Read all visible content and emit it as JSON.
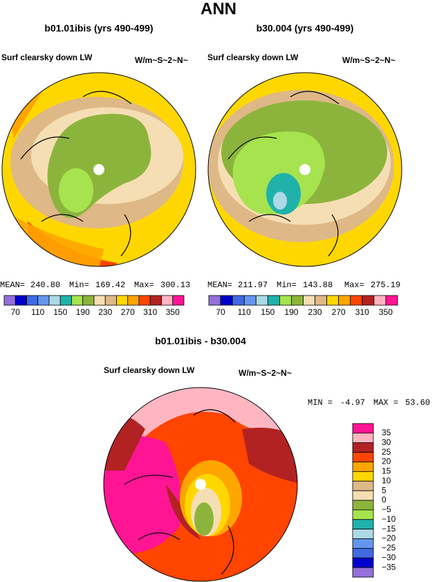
{
  "title": "ANN",
  "panels": [
    {
      "title": "b01.01ibis (yrs 490-499)",
      "variable": "Surf clearsky down LW",
      "units": "W/m~S~2~N~",
      "stats": {
        "mean_label": "MEAN=",
        "mean": "240.80",
        "min_label": "Min=",
        "min": "169.42",
        "max_label": "Max=",
        "max": "300.13"
      }
    },
    {
      "title": "b30.004 (yrs 490-499)",
      "variable": "Surf clearsky down LW",
      "units": "W/m~S~2~N~",
      "stats": {
        "mean_label": "MEAN=",
        "mean": "211.97",
        "min_label": "Min=",
        "min": "143.88",
        "max_label": "Max=",
        "max": "275.19"
      }
    }
  ],
  "colorbar": {
    "colors": [
      "#9370db",
      "#0000cd",
      "#4169e1",
      "#6495ed",
      "#add8e6",
      "#20b2aa",
      "#a6e34f",
      "#8cb43c",
      "#f5deb3",
      "#deb887",
      "#ffd700",
      "#ffa500",
      "#ff4500",
      "#b22222",
      "#ffb6c1",
      "#ff1493"
    ],
    "labels": [
      "70",
      "110",
      "150",
      "190",
      "230",
      "270",
      "310",
      "350"
    ]
  },
  "difference": {
    "title": "b01.01ibis - b30.004",
    "variable": "Surf clearsky down LW",
    "units": "W/m~S~2~N~",
    "stats": {
      "min_label": "MIN =",
      "min": "-4.97",
      "max_label": "MAX =",
      "max": "53.60"
    },
    "colorbar": {
      "colors": [
        "#ff1493",
        "#ffb6c1",
        "#b22222",
        "#ff4500",
        "#ffa500",
        "#ffd700",
        "#deb887",
        "#f5deb3",
        "#8cb43c",
        "#a6e34f",
        "#20b2aa",
        "#add8e6",
        "#6495ed",
        "#4169e1",
        "#0000cd",
        "#9370db"
      ],
      "labels": [
        "35",
        "30",
        "25",
        "20",
        "15",
        "10",
        "5",
        "0",
        "−5",
        "−10",
        "−15",
        "−20",
        "−25",
        "−30",
        "−35"
      ]
    }
  }
}
